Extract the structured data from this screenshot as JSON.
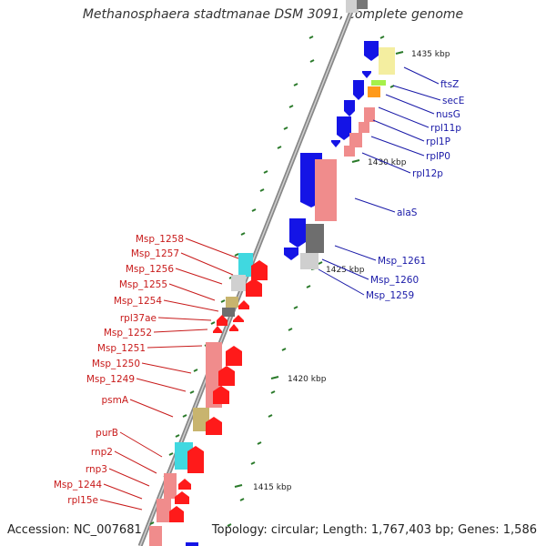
{
  "title": "Methanosphaera stadtmanae DSM 3091, complete genome",
  "accession": "Accession: NC_007681",
  "summary": "Topology: circular; Length: 1,767,403 bp; Genes: 1,586",
  "kbp_labels": [
    "1435 kbp",
    "1430 kbp",
    "1425 kbp",
    "1420 kbp",
    "1415 kbp"
  ],
  "right_labels": [
    "ftsZ",
    "secE",
    "nusG",
    "rpl11p",
    "rpl1P",
    "rplP0",
    "rpl12p",
    "alaS",
    "Msp_1261",
    "Msp_1260",
    "Msp_1259"
  ],
  "left_labels": [
    "Msp_1258",
    "Msp_1257",
    "Msp_1256",
    "Msp_1255",
    "Msp_1254",
    "rpl37ae",
    "Msp_1252",
    "Msp_1251",
    "Msp_1250",
    "Msp_1249",
    "psmA",
    "purB",
    "rnp2",
    "rnp3",
    "Msp_1244",
    "rpl15e"
  ],
  "colors": {
    "right_label": "#1a1aa8",
    "left_label": "#c81a1a",
    "forward": "#ff1a1a",
    "reverse": "#1414e6",
    "rna": "#f08c8c",
    "tick": "#2a7a2a"
  }
}
